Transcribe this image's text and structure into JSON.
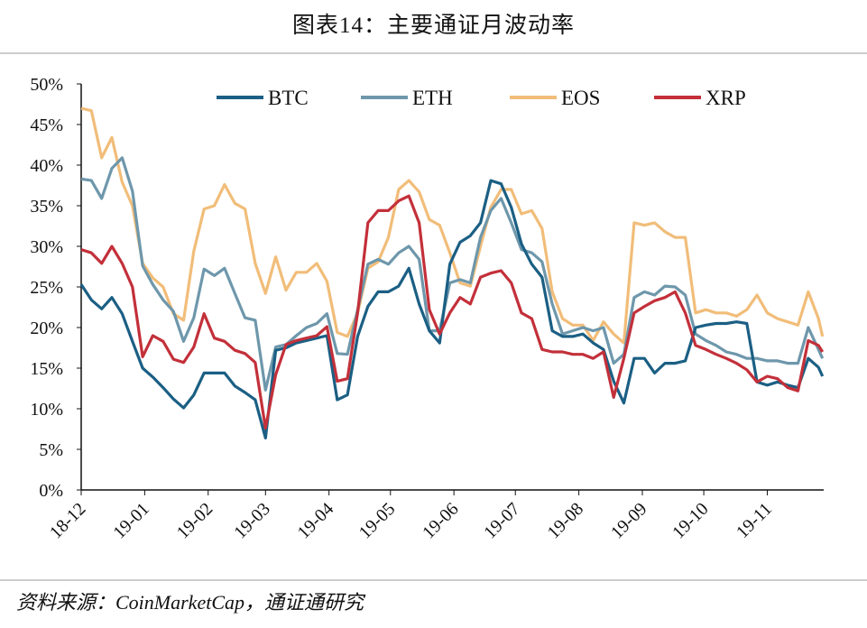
{
  "header": {
    "title": "图表14：主要通证月波动率"
  },
  "footer": {
    "source": "资料来源：CoinMarketCap，通证通研究"
  },
  "chart_data": {
    "type": "line",
    "title": "图表14：主要通证月波动率",
    "xlabel": "",
    "ylabel": "",
    "ylim": [
      0,
      0.5
    ],
    "y_ticks": [
      "0%",
      "5%",
      "10%",
      "15%",
      "20%",
      "25%",
      "30%",
      "35%",
      "40%",
      "45%",
      "50%"
    ],
    "x_ticks": [
      {
        "date": "2018-12-01",
        "label": "18-12"
      },
      {
        "date": "2019-01-01",
        "label": "19-01"
      },
      {
        "date": "2019-02-01",
        "label": "19-02"
      },
      {
        "date": "2019-03-01",
        "label": "19-03"
      },
      {
        "date": "2019-04-01",
        "label": "19-04"
      },
      {
        "date": "2019-05-01",
        "label": "19-05"
      },
      {
        "date": "2019-06-01",
        "label": "19-06"
      },
      {
        "date": "2019-07-01",
        "label": "19-07"
      },
      {
        "date": "2019-08-01",
        "label": "19-08"
      },
      {
        "date": "2019-09-01",
        "label": "19-09"
      },
      {
        "date": "2019-10-01",
        "label": "19-10"
      },
      {
        "date": "2019-11-01",
        "label": "19-11"
      }
    ],
    "grid": false,
    "legend": "top",
    "x": [
      "2018-12-01",
      "2018-12-06",
      "2018-12-11",
      "2018-12-16",
      "2018-12-21",
      "2018-12-26",
      "2018-12-31",
      "2019-01-05",
      "2019-01-10",
      "2019-01-15",
      "2019-01-20",
      "2019-01-25",
      "2019-01-30",
      "2019-02-04",
      "2019-02-09",
      "2019-02-14",
      "2019-02-19",
      "2019-02-24",
      "2019-03-01",
      "2019-03-06",
      "2019-03-11",
      "2019-03-16",
      "2019-03-21",
      "2019-03-26",
      "2019-03-31",
      "2019-04-05",
      "2019-04-10",
      "2019-04-15",
      "2019-04-20",
      "2019-04-25",
      "2019-04-30",
      "2019-05-05",
      "2019-05-10",
      "2019-05-15",
      "2019-05-20",
      "2019-05-25",
      "2019-05-30",
      "2019-06-04",
      "2019-06-09",
      "2019-06-14",
      "2019-06-19",
      "2019-06-24",
      "2019-06-29",
      "2019-07-04",
      "2019-07-09",
      "2019-07-14",
      "2019-07-19",
      "2019-07-24",
      "2019-07-29",
      "2019-08-03",
      "2019-08-08",
      "2019-08-13",
      "2019-08-18",
      "2019-08-23",
      "2019-08-28",
      "2019-09-02",
      "2019-09-07",
      "2019-09-12",
      "2019-09-17",
      "2019-09-22",
      "2019-09-27",
      "2019-10-02",
      "2019-10-07",
      "2019-10-12",
      "2019-10-17",
      "2019-10-22",
      "2019-10-27",
      "2019-11-01",
      "2019-11-06",
      "2019-11-11",
      "2019-11-16",
      "2019-11-21",
      "2019-11-26",
      "2019-11-28"
    ],
    "series": [
      {
        "name": "BTC",
        "color": "#1b5f84",
        "values": [
          25.3,
          23.4,
          22.3,
          23.7,
          21.7,
          18.3,
          15.0,
          13.9,
          12.6,
          11.2,
          10.1,
          11.7,
          14.4,
          14.4,
          14.4,
          12.8,
          12.0,
          11.1,
          6.4,
          17.2,
          17.5,
          18.1,
          18.4,
          18.7,
          19.0,
          11.1,
          11.7,
          18.9,
          22.6,
          24.4,
          24.4,
          25.1,
          27.3,
          22.9,
          19.6,
          18.1,
          27.8,
          30.5,
          31.3,
          32.9,
          38.1,
          37.7,
          34.8,
          30.3,
          27.8,
          26.2,
          19.6,
          18.9,
          18.9,
          19.2,
          18.1,
          17.3,
          13.4,
          10.7,
          16.2,
          16.2,
          14.4,
          15.6,
          15.6,
          15.9,
          20.0,
          20.3,
          20.5,
          20.5,
          20.7,
          20.5,
          13.3,
          12.9,
          13.3,
          12.9,
          12.6,
          16.2,
          15.1,
          14.0
        ]
      },
      {
        "name": "ETH",
        "color": "#6e97ab",
        "values": [
          38.3,
          38.1,
          35.9,
          39.6,
          40.9,
          36.8,
          27.6,
          25.3,
          23.4,
          22.0,
          18.3,
          21.2,
          27.2,
          26.4,
          27.3,
          24.2,
          21.2,
          20.9,
          12.3,
          17.6,
          17.9,
          19.0,
          20.0,
          20.5,
          21.7,
          16.8,
          16.7,
          22.2,
          27.8,
          28.4,
          27.8,
          29.2,
          30.0,
          28.4,
          19.6,
          19.6,
          25.5,
          25.9,
          25.5,
          31.1,
          34.4,
          35.9,
          32.9,
          29.6,
          29.2,
          28.1,
          22.9,
          19.2,
          19.6,
          20.0,
          19.6,
          20.0,
          15.6,
          16.7,
          23.7,
          24.4,
          24.0,
          25.1,
          25.0,
          24.0,
          19.2,
          18.4,
          17.8,
          17.0,
          16.7,
          16.2,
          16.2,
          15.9,
          15.9,
          15.6,
          15.6,
          20.0,
          17.3,
          16.2
        ]
      },
      {
        "name": "EOS",
        "color": "#f1bd79",
        "values": [
          47.0,
          46.7,
          40.9,
          43.4,
          37.9,
          35.0,
          27.9,
          26.1,
          25.0,
          21.7,
          20.9,
          29.4,
          34.6,
          35.0,
          37.6,
          35.3,
          34.6,
          27.9,
          24.2,
          28.7,
          24.6,
          26.8,
          26.8,
          27.9,
          25.7,
          19.4,
          18.9,
          21.8,
          27.3,
          28.1,
          31.1,
          37.0,
          38.1,
          36.7,
          33.3,
          32.6,
          29.2,
          25.5,
          25.1,
          30.0,
          34.8,
          37.0,
          37.0,
          34.0,
          34.4,
          32.2,
          24.4,
          21.1,
          20.3,
          20.3,
          18.4,
          20.7,
          19.2,
          18.1,
          32.9,
          32.6,
          32.9,
          31.8,
          31.1,
          31.1,
          21.8,
          22.2,
          21.8,
          21.8,
          21.4,
          22.2,
          24.0,
          21.8,
          21.1,
          20.7,
          20.3,
          24.4,
          21.1,
          18.9
        ]
      },
      {
        "name": "XRP",
        "color": "#c3303a",
        "values": [
          29.6,
          29.2,
          27.9,
          30.0,
          27.9,
          25.0,
          16.4,
          19.0,
          18.3,
          16.1,
          15.7,
          17.6,
          21.7,
          18.7,
          18.3,
          17.2,
          16.8,
          15.7,
          7.6,
          14.2,
          17.9,
          18.4,
          18.7,
          19.0,
          20.1,
          13.4,
          13.7,
          21.8,
          32.9,
          34.4,
          34.4,
          35.6,
          36.2,
          32.9,
          22.2,
          19.2,
          21.8,
          23.7,
          22.9,
          26.2,
          26.7,
          27.0,
          25.5,
          21.8,
          21.1,
          17.3,
          17.0,
          17.0,
          16.7,
          16.7,
          16.2,
          17.0,
          11.4,
          16.2,
          21.8,
          22.6,
          23.3,
          23.7,
          24.4,
          21.8,
          17.8,
          17.3,
          16.7,
          16.2,
          15.6,
          14.8,
          13.3,
          14.0,
          13.7,
          12.6,
          12.2,
          18.4,
          17.8,
          17.0
        ]
      }
    ]
  }
}
